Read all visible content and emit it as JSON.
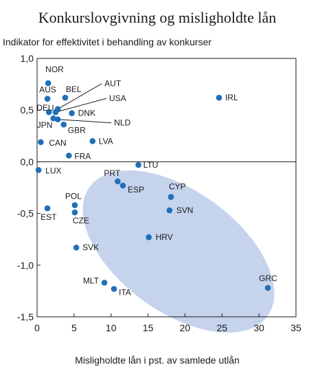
{
  "chart_data": {
    "type": "scatter",
    "title": "Konkurslovgivning og misligholdte lån",
    "ylabel": "Indikator for effektivitet i behandling av konkurser",
    "xlabel": "Misligholdte lån i pst. av samlede utlån",
    "xlim": [
      0,
      35
    ],
    "ylim": [
      -1.5,
      1.0
    ],
    "x_ticks": [
      "0",
      "5",
      "10",
      "15",
      "20",
      "25",
      "30",
      "35"
    ],
    "y_ticks": [
      "1,0",
      "0,5",
      "0,0",
      "-0,5",
      "-1,0",
      "-1,5"
    ],
    "grid": false,
    "point_color": "#1f6fb8",
    "ellipse_color": "#c5d3ec",
    "points": [
      {
        "label": "NOR",
        "x": 1.5,
        "y": 0.76
      },
      {
        "label": "AUS",
        "x": 1.4,
        "y": 0.61
      },
      {
        "label": "BEL",
        "x": 3.8,
        "y": 0.62
      },
      {
        "label": "AUT",
        "x": 2.8,
        "y": 0.51
      },
      {
        "label": "USA",
        "x": 2.5,
        "y": 0.48
      },
      {
        "label": "DEU",
        "x": 1.6,
        "y": 0.48
      },
      {
        "label": "DNK",
        "x": 4.7,
        "y": 0.47
      },
      {
        "label": "NLD",
        "x": 2.8,
        "y": 0.41
      },
      {
        "label": "JPN",
        "x": 2.2,
        "y": 0.42
      },
      {
        "label": "GBR",
        "x": 3.6,
        "y": 0.36
      },
      {
        "label": "CAN",
        "x": 0.5,
        "y": 0.19
      },
      {
        "label": "LVA",
        "x": 7.5,
        "y": 0.2
      },
      {
        "label": "FRA",
        "x": 4.3,
        "y": 0.06
      },
      {
        "label": "IRL",
        "x": 24.6,
        "y": 0.62
      },
      {
        "label": "LUX",
        "x": 0.2,
        "y": -0.08
      },
      {
        "label": "LTU",
        "x": 13.7,
        "y": -0.03
      },
      {
        "label": "PRT",
        "x": 10.9,
        "y": -0.19
      },
      {
        "label": "ESP",
        "x": 11.6,
        "y": -0.23
      },
      {
        "label": "CYP",
        "x": 18.1,
        "y": -0.34
      },
      {
        "label": "SVN",
        "x": 17.9,
        "y": -0.47
      },
      {
        "label": "POL",
        "x": 5.1,
        "y": -0.42
      },
      {
        "label": "CZE",
        "x": 5.1,
        "y": -0.49
      },
      {
        "label": "EST",
        "x": 1.4,
        "y": -0.45
      },
      {
        "label": "HRV",
        "x": 15.1,
        "y": -0.73
      },
      {
        "label": "SVK",
        "x": 5.3,
        "y": -0.83
      },
      {
        "label": "MLT",
        "x": 9.1,
        "y": -1.17
      },
      {
        "label": "ITA",
        "x": 10.4,
        "y": -1.23
      },
      {
        "label": "GRC",
        "x": 31.2,
        "y": -1.22
      }
    ]
  }
}
